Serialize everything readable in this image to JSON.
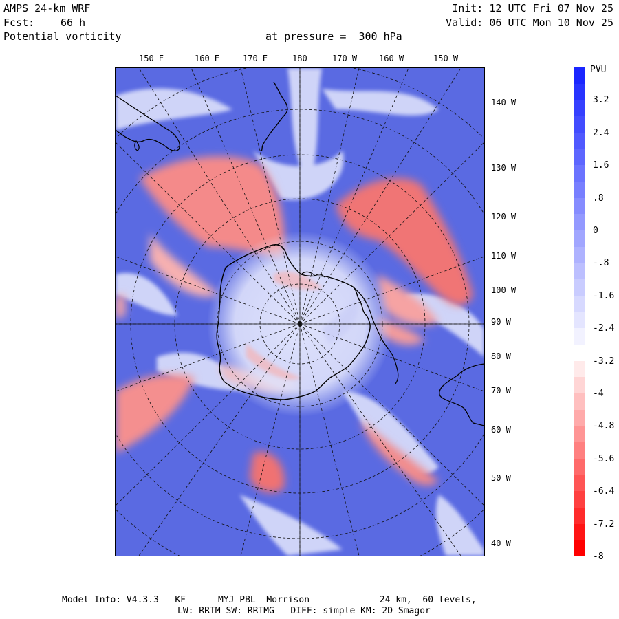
{
  "header": {
    "model": "AMPS 24-km WRF",
    "forecast_label": "Fcst:",
    "forecast_value": "66 h",
    "field": "Potential vorticity",
    "init": "Init: 12 UTC Fri 07 Nov 25",
    "valid": "Valid: 06 UTC Mon 10 Nov 25",
    "pressure": "at pressure =  300 hPa"
  },
  "map": {
    "top_labels": [
      "150 E",
      "160 E",
      "170 E",
      "180",
      "170 W",
      "160 W",
      "150 W"
    ],
    "right_labels": [
      "140 W",
      "130 W",
      "120 W",
      "110 W",
      "100 W",
      "90 W",
      "80 W",
      "70 W",
      "60 W",
      "50 W",
      "40 W"
    ]
  },
  "colorbar": {
    "title": "PVU",
    "tick_labels": [
      "3.2",
      "2.4",
      "1.6",
      ".8",
      "0",
      "-.8",
      "-1.6",
      "-2.4",
      "-3.2",
      "-4",
      "-4.8",
      "-5.6",
      "-6.4",
      "-7.2",
      "-8"
    ],
    "range": [
      -8,
      4
    ],
    "colors": {
      "high": "#1a26ff",
      "mid": "#ffffff",
      "low": "#ff0000",
      "background_blue": "#5566e0"
    }
  },
  "footer": {
    "line1": "Model Info: V4.3.3   KF      MYJ PBL  Morrison             24 km,  60 levels,",
    "line2": "LW: RRTM SW: RRTMG   DIFF: simple KM: 2D Smagor"
  }
}
